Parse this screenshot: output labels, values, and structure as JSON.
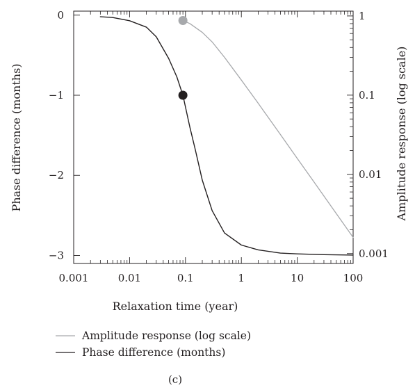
{
  "chart_data": {
    "type": "line",
    "panel_label": "(c)",
    "xlabel": "Relaxation time (year)",
    "ylabel_left": "Phase difference (months)",
    "ylabel_right": "Amplitude response (log scale)",
    "x_scale": "log",
    "xlim": [
      0.001,
      100
    ],
    "ylim_left": [
      -3.1,
      0.05
    ],
    "ylim_right": [
      0.00075,
      1.15
    ],
    "y_right_scale": "log",
    "x_ticks": [
      0.001,
      0.01,
      0.1,
      1,
      10,
      100
    ],
    "x_tick_labels": [
      "0.001",
      "0.01",
      "0.1",
      "1",
      "10",
      "100"
    ],
    "y_left_ticks": [
      0,
      -1,
      -2,
      -3
    ],
    "y_left_tick_labels": [
      "0",
      "−1",
      "−2",
      "−3"
    ],
    "y_right_ticks": [
      1,
      0.1,
      0.01,
      0.001
    ],
    "y_right_tick_labels": [
      "1",
      "0.1",
      "0.01",
      "0.001"
    ],
    "grid": false,
    "legend_position": "below",
    "legend": [
      {
        "label": "Amplitude response (log scale)",
        "color": "#a7a9ac"
      },
      {
        "label": "Phase difference (months)",
        "color": "#231f20"
      }
    ],
    "series": [
      {
        "name": "Amplitude response (log scale)",
        "axis": "right",
        "color": "#a7a9ac",
        "x": [
          0.09,
          0.12,
          0.2,
          0.3,
          0.5,
          1,
          2,
          5,
          10,
          20,
          50,
          100
        ],
        "y": [
          0.875,
          0.8,
          0.62,
          0.47,
          0.3,
          0.155,
          0.079,
          0.0318,
          0.0159,
          0.008,
          0.0032,
          0.0016
        ]
      },
      {
        "name": "Phase difference (months)",
        "axis": "left",
        "color": "#231f20",
        "x": [
          0.003,
          0.005,
          0.01,
          0.02,
          0.03,
          0.05,
          0.07,
          0.09,
          0.12,
          0.15,
          0.2,
          0.3,
          0.5,
          1,
          2,
          5,
          10,
          30,
          100
        ],
        "y": [
          -0.02,
          -0.03,
          -0.07,
          -0.15,
          -0.27,
          -0.54,
          -0.77,
          -1.0,
          -1.4,
          -1.68,
          -2.06,
          -2.44,
          -2.72,
          -2.87,
          -2.93,
          -2.97,
          -2.98,
          -2.99,
          -2.995
        ]
      }
    ],
    "markers": [
      {
        "series": "Amplitude response (log scale)",
        "x": 0.09,
        "y": 0.875,
        "color": "#a7a9ac"
      },
      {
        "series": "Phase difference (months)",
        "x": 0.09,
        "y": -1.0,
        "color": "#231f20"
      }
    ]
  }
}
